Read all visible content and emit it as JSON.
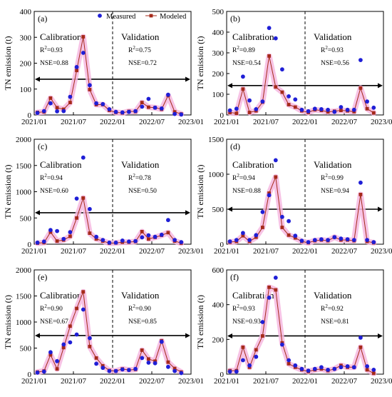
{
  "figure": {
    "legend": {
      "measured": "Measured",
      "modeled": "Modeled"
    },
    "x_ticks": [
      "2021/01",
      "2021/07",
      "2022/01",
      "2022/07",
      "2023/01"
    ],
    "ylabel": "TN emission (t)",
    "colors": {
      "measured": "#1f1fd6",
      "modeled": "#a52a1a",
      "halo": "#f6b8e0",
      "axis": "#000000"
    }
  },
  "chart_data": [
    {
      "type": "line",
      "panel": "(a)",
      "ylim": [
        0,
        400
      ],
      "yticks": [
        0,
        100,
        200,
        300,
        400
      ],
      "threshold": 138,
      "calibration": {
        "label": "Calibration",
        "r2": "=0.93",
        "nse": "NSE=0.88"
      },
      "validation": {
        "label": "Validation",
        "r2": "=0.75",
        "nse": "NSE=0.72"
      },
      "series": [
        {
          "name": "Measured",
          "values": [
            8,
            15,
            45,
            14,
            15,
            70,
            185,
            240,
            115,
            45,
            42,
            22,
            12,
            10,
            12,
            15,
            32,
            62,
            28,
            25,
            78,
            4,
            2
          ]
        },
        {
          "name": "Modeled",
          "values": [
            10,
            12,
            65,
            28,
            22,
            48,
            172,
            302,
            98,
            40,
            40,
            18,
            10,
            8,
            14,
            13,
            48,
            30,
            28,
            22,
            75,
            12,
            4
          ]
        }
      ]
    },
    {
      "type": "line",
      "panel": "(b)",
      "ylim": [
        0,
        500
      ],
      "yticks": [
        0,
        100,
        200,
        300,
        400,
        500
      ],
      "threshold": 142,
      "calibration": {
        "label": "Calibration",
        "r2": "=0.89",
        "nse": "NSE=0.54"
      },
      "validation": {
        "label": "Validation",
        "r2": "=0.93",
        "nse": "NSE=0.56"
      },
      "series": [
        {
          "name": "Measured",
          "values": [
            22,
            30,
            185,
            70,
            28,
            65,
            420,
            370,
            220,
            90,
            75,
            25,
            18,
            30,
            28,
            25,
            15,
            38,
            25,
            25,
            265,
            65,
            35
          ]
        },
        {
          "name": "Modeled",
          "values": [
            12,
            8,
            125,
            12,
            20,
            62,
            285,
            135,
            110,
            50,
            38,
            20,
            12,
            25,
            22,
            15,
            18,
            22,
            20,
            16,
            130,
            30,
            10
          ]
        }
      ]
    },
    {
      "type": "line",
      "panel": "(c)",
      "ylim": [
        0,
        2000
      ],
      "yticks": [
        0,
        500,
        1000,
        1500,
        2000
      ],
      "threshold": 600,
      "calibration": {
        "label": "Calibration",
        "r2": "=0.94",
        "nse": "NSE=0.60"
      },
      "validation": {
        "label": "Validation",
        "r2": "=0.78",
        "nse": "NSE=0.50"
      },
      "series": [
        {
          "name": "Measured",
          "values": [
            30,
            50,
            270,
            250,
            100,
            230,
            870,
            1650,
            670,
            140,
            80,
            30,
            30,
            70,
            50,
            60,
            130,
            170,
            140,
            180,
            460,
            80,
            40
          ]
        },
        {
          "name": "Modeled",
          "values": [
            20,
            30,
            230,
            60,
            80,
            150,
            500,
            880,
            210,
            100,
            60,
            20,
            25,
            40,
            40,
            50,
            240,
            100,
            130,
            170,
            220,
            60,
            20
          ]
        }
      ]
    },
    {
      "type": "line",
      "panel": "(d)",
      "ylim": [
        0,
        1500
      ],
      "yticks": [
        0,
        500,
        1000,
        1500
      ],
      "threshold": 500,
      "calibration": {
        "label": "Calibration",
        "r2": "=0.94",
        "nse": "NSE=0.88"
      },
      "validation": {
        "label": "Validation",
        "r2": "=0.99",
        "nse": "NSE=0.94"
      },
      "series": [
        {
          "name": "Measured",
          "values": [
            40,
            60,
            160,
            60,
            130,
            460,
            700,
            1200,
            390,
            330,
            120,
            50,
            30,
            60,
            70,
            60,
            100,
            80,
            70,
            60,
            880,
            60,
            30
          ]
        },
        {
          "name": "Modeled",
          "values": [
            30,
            40,
            120,
            40,
            100,
            240,
            730,
            960,
            240,
            130,
            90,
            40,
            20,
            50,
            60,
            50,
            100,
            60,
            60,
            50,
            710,
            40,
            20
          ]
        }
      ]
    },
    {
      "type": "line",
      "panel": "(e)",
      "ylim": [
        0,
        2000
      ],
      "yticks": [
        0,
        500,
        1000,
        1500,
        2000
      ],
      "threshold": 740,
      "calibration": {
        "label": "Calibration",
        "r2": "=0.90",
        "nse": "NSE=0.67"
      },
      "validation": {
        "label": "Validation",
        "r2": "=0.90",
        "nse": "NSE=0.85"
      },
      "series": [
        {
          "name": "Measured",
          "values": [
            30,
            50,
            420,
            250,
            570,
            610,
            760,
            1240,
            690,
            200,
            120,
            60,
            60,
            90,
            80,
            100,
            310,
            220,
            210,
            620,
            140,
            60,
            20
          ]
        },
        {
          "name": "Modeled",
          "values": [
            40,
            60,
            370,
            100,
            510,
            920,
            1260,
            1580,
            530,
            310,
            160,
            70,
            60,
            100,
            80,
            90,
            460,
            290,
            250,
            640,
            230,
            110,
            40
          ]
        }
      ]
    },
    {
      "type": "line",
      "panel": "(f)",
      "ylim": [
        0,
        600
      ],
      "yticks": [
        0,
        200,
        400,
        600
      ],
      "threshold": 220,
      "calibration": {
        "label": "Calibration",
        "r2": "=0.93",
        "nse": "NSE=0.93"
      },
      "validation": {
        "label": "Validation",
        "r2": "=0.92",
        "nse": "NSE=0.81"
      },
      "series": [
        {
          "name": "Measured",
          "values": [
            15,
            15,
            80,
            50,
            100,
            300,
            440,
            555,
            170,
            80,
            50,
            30,
            20,
            30,
            40,
            25,
            30,
            40,
            45,
            40,
            210,
            45,
            25
          ]
        },
        {
          "name": "Modeled",
          "values": [
            20,
            20,
            155,
            40,
            140,
            220,
            500,
            485,
            180,
            60,
            40,
            25,
            15,
            25,
            30,
            20,
            30,
            50,
            40,
            40,
            155,
            25,
            5
          ]
        }
      ]
    }
  ]
}
